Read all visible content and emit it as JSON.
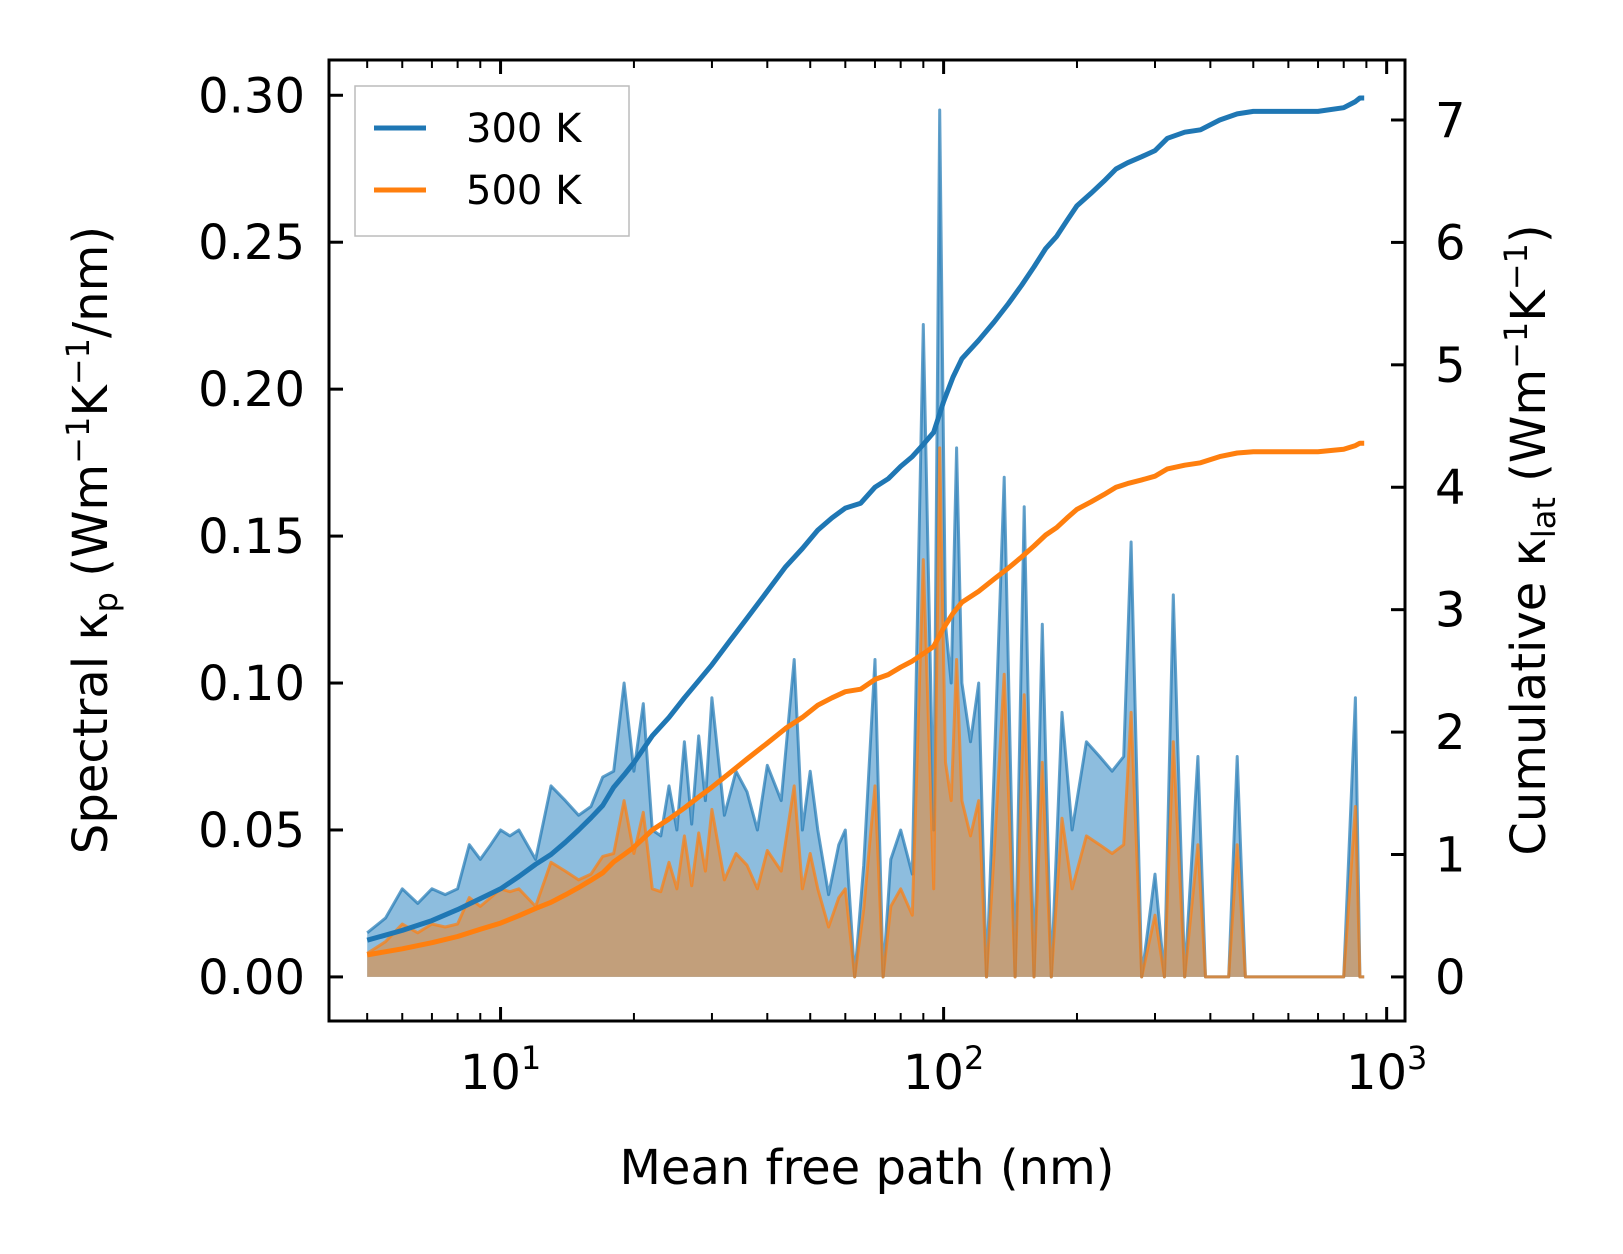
{
  "chart_data": {
    "type": "line",
    "title": "",
    "xlabel": "Mean free path (nm)",
    "ylabel_left": "Spectral κp (Wm⁻¹K⁻¹/nm)",
    "ylabel_right": "Cumulative κlat (Wm⁻¹K⁻¹)",
    "xscale": "log",
    "xlim": [
      4.1,
      1100
    ],
    "ylim_left": [
      -0.015,
      0.312
    ],
    "ylim_right": [
      -0.36,
      7.49
    ],
    "x_ticks": [
      {
        "base": "10",
        "exp": "1",
        "value": 10
      },
      {
        "base": "10",
        "exp": "2",
        "value": 100
      },
      {
        "base": "10",
        "exp": "3",
        "value": 1000
      }
    ],
    "y_ticks_left": [
      "0.00",
      "0.05",
      "0.10",
      "0.15",
      "0.20",
      "0.25",
      "0.30"
    ],
    "y_ticks_right": [
      "0",
      "1",
      "2",
      "3",
      "4",
      "5",
      "6",
      "7"
    ],
    "legend": {
      "position": "top-left",
      "entries": [
        "300 K",
        "500 K"
      ]
    },
    "colors": {
      "series_300K": "#1f77b4",
      "series_500K": "#ff7f0e",
      "fill_300K": "#87b9dc",
      "fill_500K": "#c89b70"
    },
    "spectral_series": [
      {
        "name": "300 K",
        "x": [
          5.0,
          5.5,
          6.0,
          6.5,
          7.0,
          7.5,
          8.0,
          8.5,
          9.0,
          9.5,
          10.0,
          10.5,
          11.0,
          12.0,
          13.0,
          14.0,
          15.0,
          16.0,
          17.0,
          18.0,
          19.0,
          20.0,
          21.0,
          22.0,
          23.0,
          24.0,
          25.0,
          26.0,
          27.0,
          28.0,
          29.0,
          30.0,
          32.0,
          34.0,
          36.0,
          38.0,
          40.0,
          43.0,
          46.0,
          48.0,
          50.0,
          52.0,
          55.0,
          58.0,
          60.0,
          63.0,
          66.0,
          70.0,
          73.0,
          76.0,
          80.0,
          85.0,
          90.0,
          95.0,
          98.0,
          101.0,
          104.0,
          107.0,
          110.0,
          115.0,
          120.0,
          125.0,
          130.0,
          137.0,
          145.0,
          152.0,
          160.0,
          167.0,
          175.0,
          185.0,
          195.0,
          210.0,
          225.0,
          240.0,
          255.0,
          265.0,
          280.0,
          300.0,
          315.0,
          330.0,
          350.0,
          375.0,
          390.0,
          410.0,
          440.0,
          460.0,
          480.0,
          520.0,
          600.0,
          700.0,
          800.0,
          850.0,
          870.0,
          890.0
        ],
        "y": [
          0.015,
          0.02,
          0.03,
          0.025,
          0.03,
          0.028,
          0.03,
          0.045,
          0.04,
          0.045,
          0.05,
          0.048,
          0.05,
          0.04,
          0.065,
          0.06,
          0.055,
          0.058,
          0.068,
          0.07,
          0.1,
          0.07,
          0.093,
          0.05,
          0.048,
          0.065,
          0.05,
          0.08,
          0.052,
          0.082,
          0.06,
          0.095,
          0.055,
          0.07,
          0.063,
          0.05,
          0.072,
          0.06,
          0.108,
          0.05,
          0.07,
          0.05,
          0.028,
          0.045,
          0.05,
          0.0,
          0.038,
          0.108,
          0.0,
          0.04,
          0.05,
          0.035,
          0.222,
          0.05,
          0.295,
          0.12,
          0.1,
          0.18,
          0.1,
          0.08,
          0.1,
          0.0,
          0.07,
          0.17,
          0.0,
          0.16,
          0.0,
          0.12,
          0.0,
          0.09,
          0.05,
          0.08,
          0.075,
          0.07,
          0.075,
          0.148,
          0.0,
          0.035,
          0.0,
          0.13,
          0.0,
          0.075,
          0.0,
          0.0,
          0.0,
          0.075,
          0.0,
          0.0,
          0.0,
          0.0,
          0.0,
          0.095,
          0.0,
          0.0
        ]
      },
      {
        "name": "500 K",
        "x": [
          5.0,
          5.5,
          6.0,
          6.5,
          7.0,
          7.5,
          8.0,
          8.5,
          9.0,
          9.5,
          10.0,
          10.5,
          11.0,
          12.0,
          13.0,
          14.0,
          15.0,
          16.0,
          17.0,
          18.0,
          19.0,
          20.0,
          21.0,
          22.0,
          23.0,
          24.0,
          25.0,
          26.0,
          27.0,
          28.0,
          29.0,
          30.0,
          32.0,
          34.0,
          36.0,
          38.0,
          40.0,
          43.0,
          46.0,
          48.0,
          50.0,
          52.0,
          55.0,
          58.0,
          60.0,
          63.0,
          66.0,
          70.0,
          73.0,
          76.0,
          80.0,
          85.0,
          90.0,
          95.0,
          98.0,
          101.0,
          104.0,
          107.0,
          110.0,
          115.0,
          120.0,
          125.0,
          130.0,
          137.0,
          145.0,
          152.0,
          160.0,
          167.0,
          175.0,
          185.0,
          195.0,
          210.0,
          225.0,
          240.0,
          255.0,
          265.0,
          280.0,
          300.0,
          315.0,
          330.0,
          350.0,
          375.0,
          390.0,
          410.0,
          440.0,
          460.0,
          480.0,
          520.0,
          600.0,
          700.0,
          800.0,
          850.0,
          870.0,
          890.0
        ],
        "y": [
          0.008,
          0.012,
          0.018,
          0.015,
          0.018,
          0.017,
          0.018,
          0.027,
          0.024,
          0.027,
          0.03,
          0.029,
          0.03,
          0.024,
          0.039,
          0.036,
          0.033,
          0.035,
          0.041,
          0.042,
          0.06,
          0.042,
          0.056,
          0.03,
          0.029,
          0.039,
          0.03,
          0.048,
          0.031,
          0.049,
          0.036,
          0.057,
          0.033,
          0.042,
          0.038,
          0.03,
          0.043,
          0.036,
          0.065,
          0.03,
          0.042,
          0.03,
          0.017,
          0.027,
          0.03,
          0.0,
          0.023,
          0.065,
          0.0,
          0.024,
          0.03,
          0.021,
          0.142,
          0.03,
          0.18,
          0.073,
          0.06,
          0.108,
          0.06,
          0.048,
          0.06,
          0.0,
          0.042,
          0.103,
          0.0,
          0.096,
          0.0,
          0.073,
          0.0,
          0.054,
          0.03,
          0.048,
          0.045,
          0.042,
          0.045,
          0.09,
          0.0,
          0.021,
          0.0,
          0.08,
          0.0,
          0.045,
          0.0,
          0.0,
          0.0,
          0.045,
          0.0,
          0.0,
          0.0,
          0.0,
          0.0,
          0.058,
          0.0,
          0.0
        ]
      }
    ],
    "cumulative_series": [
      {
        "name": "300 K",
        "x": [
          5.0,
          6.0,
          7.0,
          8.0,
          9.0,
          10.0,
          11.0,
          12.0,
          13.0,
          14.0,
          15.0,
          16.0,
          17.0,
          18.0,
          19.0,
          20.0,
          22.0,
          24.0,
          26.0,
          28.0,
          30.0,
          33.0,
          36.0,
          40.0,
          44.0,
          48.0,
          52.0,
          56.0,
          60.0,
          65.0,
          70.0,
          75.0,
          80.0,
          85.0,
          90.0,
          95.0,
          100.0,
          105.0,
          110.0,
          120.0,
          130.0,
          140.0,
          150.0,
          160.0,
          170.0,
          180.0,
          190.0,
          200.0,
          215.0,
          230.0,
          245.0,
          260.0,
          280.0,
          300.0,
          320.0,
          350.0,
          380.0,
          420.0,
          460.0,
          500.0,
          600.0,
          700.0,
          800.0,
          850.0,
          870.0,
          890.0
        ],
        "y": [
          0.3,
          0.38,
          0.46,
          0.55,
          0.64,
          0.72,
          0.82,
          0.92,
          1.0,
          1.1,
          1.2,
          1.3,
          1.4,
          1.55,
          1.65,
          1.75,
          1.97,
          2.12,
          2.28,
          2.42,
          2.55,
          2.75,
          2.93,
          3.15,
          3.35,
          3.5,
          3.65,
          3.75,
          3.83,
          3.87,
          4.0,
          4.07,
          4.17,
          4.25,
          4.35,
          4.45,
          4.7,
          4.9,
          5.05,
          5.2,
          5.35,
          5.5,
          5.65,
          5.8,
          5.95,
          6.05,
          6.18,
          6.3,
          6.4,
          6.5,
          6.6,
          6.65,
          6.7,
          6.75,
          6.85,
          6.9,
          6.92,
          7.0,
          7.05,
          7.07,
          7.07,
          7.07,
          7.1,
          7.15,
          7.18,
          7.18
        ]
      },
      {
        "name": "500 K",
        "x": [
          5.0,
          6.0,
          7.0,
          8.0,
          9.0,
          10.0,
          11.0,
          12.0,
          13.0,
          14.0,
          15.0,
          16.0,
          17.0,
          18.0,
          19.0,
          20.0,
          22.0,
          24.0,
          26.0,
          28.0,
          30.0,
          33.0,
          36.0,
          40.0,
          44.0,
          48.0,
          52.0,
          56.0,
          60.0,
          65.0,
          70.0,
          75.0,
          80.0,
          85.0,
          90.0,
          95.0,
          100.0,
          105.0,
          110.0,
          120.0,
          130.0,
          140.0,
          150.0,
          160.0,
          170.0,
          180.0,
          190.0,
          200.0,
          215.0,
          230.0,
          245.0,
          260.0,
          280.0,
          300.0,
          320.0,
          350.0,
          380.0,
          420.0,
          460.0,
          500.0,
          600.0,
          700.0,
          800.0,
          850.0,
          870.0,
          890.0
        ],
        "y": [
          0.18,
          0.23,
          0.28,
          0.33,
          0.39,
          0.44,
          0.5,
          0.56,
          0.61,
          0.67,
          0.73,
          0.79,
          0.85,
          0.94,
          1.0,
          1.06,
          1.2,
          1.29,
          1.38,
          1.47,
          1.55,
          1.67,
          1.78,
          1.91,
          2.03,
          2.12,
          2.22,
          2.28,
          2.33,
          2.35,
          2.43,
          2.47,
          2.53,
          2.58,
          2.64,
          2.7,
          2.85,
          2.97,
          3.06,
          3.15,
          3.25,
          3.34,
          3.43,
          3.52,
          3.61,
          3.67,
          3.75,
          3.82,
          3.88,
          3.94,
          4.0,
          4.03,
          4.06,
          4.09,
          4.15,
          4.18,
          4.2,
          4.25,
          4.28,
          4.29,
          4.29,
          4.29,
          4.31,
          4.34,
          4.36,
          4.36
        ]
      }
    ]
  }
}
